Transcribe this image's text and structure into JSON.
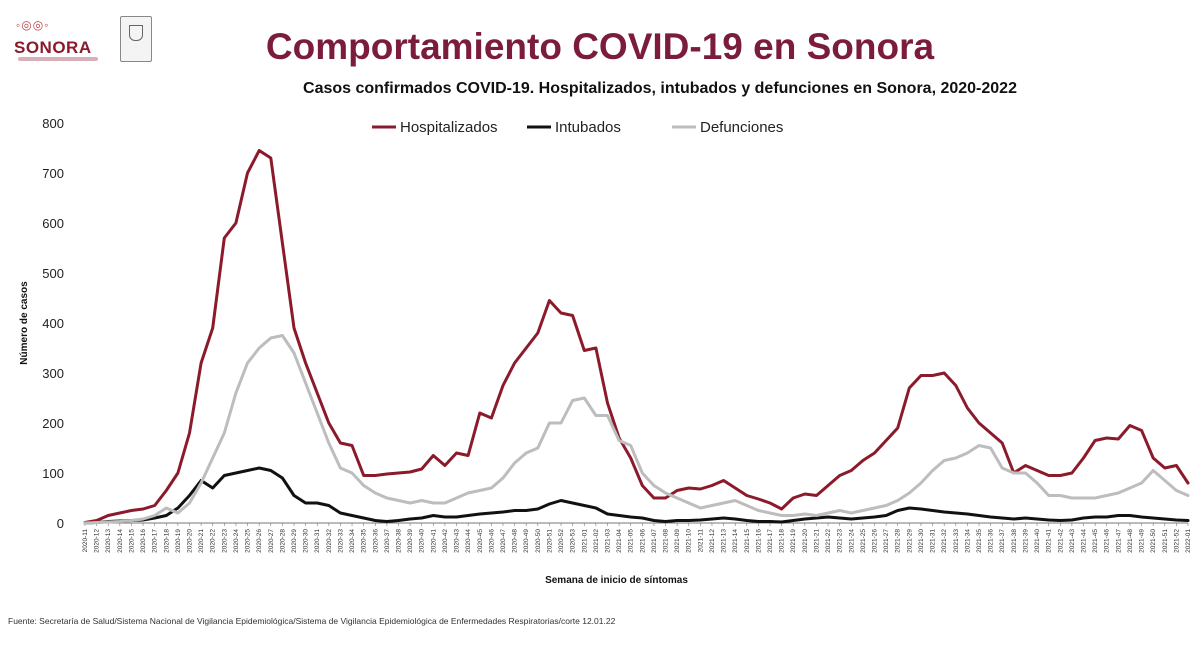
{
  "header": {
    "title": "Comportamiento COVID-19 en Sonora",
    "logo_text": "SONORA"
  },
  "footer": {
    "source": "Fuente: Secretaría de Salud/Sistema Nacional de Vigilancia Epidemiológica/Sistema de Vigilancia Epidemiológica de Enfermedades Respiratorias/corte 12.01.22"
  },
  "colors": {
    "hospitalizados": "#8b1a2b",
    "intubados": "#111111",
    "defunciones": "#bdbdbd",
    "title": "#7b1c3c"
  },
  "chart_data": {
    "type": "line",
    "title": "Casos confirmados COVID-19. Hospitalizados, intubados y defunciones en Sonora, 2020-2022",
    "xlabel": "Semana de inicio de síntomas",
    "ylabel": "Número de casos",
    "ylim": [
      0,
      800
    ],
    "yticks": [
      0,
      100,
      200,
      300,
      400,
      500,
      600,
      700,
      800
    ],
    "legend_position": "top-center",
    "grid": false,
    "x": [
      "2020-11",
      "2020-12",
      "2020-13",
      "2020-14",
      "2020-15",
      "2020-16",
      "2020-17",
      "2020-18",
      "2020-19",
      "2020-20",
      "2020-21",
      "2020-22",
      "2020-23",
      "2020-24",
      "2020-25",
      "2020-26",
      "2020-27",
      "2020-28",
      "2020-29",
      "2020-30",
      "2020-31",
      "2020-32",
      "2020-33",
      "2020-34",
      "2020-35",
      "2020-36",
      "2020-37",
      "2020-38",
      "2020-39",
      "2020-40",
      "2020-41",
      "2020-42",
      "2020-43",
      "2020-44",
      "2020-45",
      "2020-46",
      "2020-47",
      "2020-48",
      "2020-49",
      "2020-50",
      "2020-51",
      "2020-52",
      "2020-53",
      "2021-01",
      "2021-02",
      "2021-03",
      "2021-04",
      "2021-05",
      "2021-06",
      "2021-07",
      "2021-08",
      "2021-09",
      "2021-10",
      "2021-11",
      "2021-12",
      "2021-13",
      "2021-14",
      "2021-15",
      "2021-16",
      "2021-17",
      "2021-18",
      "2021-19",
      "2021-20",
      "2021-21",
      "2021-22",
      "2021-23",
      "2021-24",
      "2021-25",
      "2021-26",
      "2021-27",
      "2021-28",
      "2021-29",
      "2021-30",
      "2021-31",
      "2021-32",
      "2021-33",
      "2021-34",
      "2021-35",
      "2021-36",
      "2021-37",
      "2021-38",
      "2021-39",
      "2021-40",
      "2021-41",
      "2021-42",
      "2021-43",
      "2021-44",
      "2021-45",
      "2021-46",
      "2021-47",
      "2021-48",
      "2021-49",
      "2021-50",
      "2021-51",
      "2021-52",
      "2022-01"
    ],
    "series": [
      {
        "name": "Hospitalizados",
        "values": [
          1,
          5,
          15,
          20,
          25,
          28,
          35,
          65,
          100,
          180,
          320,
          390,
          570,
          600,
          700,
          745,
          730,
          560,
          390,
          320,
          260,
          200,
          160,
          155,
          95,
          95,
          98,
          100,
          102,
          108,
          135,
          115,
          140,
          135,
          220,
          210,
          275,
          320,
          350,
          380,
          445,
          420,
          415,
          345,
          350,
          240,
          170,
          130,
          75,
          50,
          50,
          65,
          70,
          68,
          75,
          85,
          70,
          55,
          48,
          40,
          28,
          50,
          58,
          55,
          75,
          95,
          105,
          125,
          140,
          165,
          190,
          270,
          295,
          295,
          300,
          275,
          230,
          200,
          180,
          160,
          100,
          115,
          105,
          95,
          95,
          100,
          130,
          165,
          170,
          168,
          195,
          185,
          130,
          110,
          115,
          80
        ]
      },
      {
        "name": "Intubados",
        "values": [
          0,
          1,
          3,
          4,
          5,
          6,
          10,
          15,
          30,
          55,
          85,
          70,
          95,
          100,
          105,
          110,
          105,
          90,
          55,
          40,
          40,
          35,
          20,
          15,
          10,
          5,
          3,
          5,
          8,
          10,
          15,
          12,
          12,
          15,
          18,
          20,
          22,
          25,
          25,
          28,
          38,
          45,
          40,
          35,
          30,
          18,
          15,
          12,
          10,
          5,
          3,
          5,
          5,
          6,
          8,
          10,
          8,
          5,
          3,
          3,
          2,
          5,
          8,
          10,
          12,
          10,
          8,
          10,
          12,
          15,
          25,
          30,
          28,
          25,
          22,
          20,
          18,
          15,
          12,
          10,
          8,
          10,
          8,
          6,
          5,
          6,
          10,
          12,
          12,
          15,
          15,
          12,
          10,
          8,
          6,
          5
        ]
      },
      {
        "name": "Defunciones",
        "values": [
          0,
          1,
          2,
          3,
          5,
          8,
          15,
          30,
          20,
          40,
          80,
          130,
          180,
          260,
          320,
          350,
          370,
          375,
          340,
          280,
          220,
          160,
          110,
          100,
          75,
          60,
          50,
          45,
          40,
          45,
          40,
          40,
          50,
          60,
          65,
          70,
          90,
          120,
          140,
          150,
          200,
          200,
          245,
          250,
          215,
          215,
          165,
          155,
          100,
          75,
          60,
          50,
          40,
          30,
          35,
          40,
          45,
          35,
          25,
          20,
          15,
          15,
          18,
          15,
          20,
          25,
          20,
          25,
          30,
          35,
          45,
          60,
          80,
          105,
          125,
          130,
          140,
          155,
          150,
          110,
          100,
          100,
          80,
          55,
          55,
          50,
          50,
          50,
          55,
          60,
          70,
          80,
          105,
          85,
          65,
          55
        ]
      }
    ]
  }
}
